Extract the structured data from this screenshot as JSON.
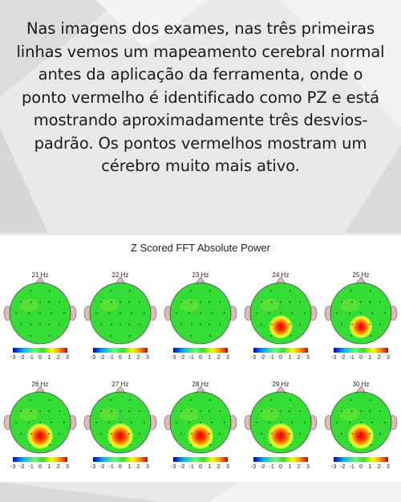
{
  "caption": {
    "text": "Nas imagens dos exames, nas três primeiras linhas vemos um mapeamento cerebral normal antes da aplicação da ferramenta, onde o ponto vermelho é identificado como PZ e está mostrando aproximadamente três desvios-padrão. Os pontos vermelhos mostram um cérebro muito mais ativo."
  },
  "figure": {
    "title": "Z Scored FFT Absolute Power",
    "scale_ticks": [
      "-3",
      "-2",
      "-1",
      "0",
      "1",
      "2",
      "3"
    ],
    "maps": [
      {
        "label": "21 Hz",
        "pz_intensity": 0.0
      },
      {
        "label": "22 Hz",
        "pz_intensity": 0.0
      },
      {
        "label": "23 Hz",
        "pz_intensity": 0.0
      },
      {
        "label": "24 Hz",
        "pz_intensity": 0.75
      },
      {
        "label": "25 Hz",
        "pz_intensity": 0.7
      },
      {
        "label": "26 Hz",
        "pz_intensity": 1.0
      },
      {
        "label": "27 Hz",
        "pz_intensity": 1.0
      },
      {
        "label": "28 Hz",
        "pz_intensity": 1.0
      },
      {
        "label": "29 Hz",
        "pz_intensity": 1.0
      },
      {
        "label": "30 Hz",
        "pz_intensity": 1.0
      }
    ]
  }
}
